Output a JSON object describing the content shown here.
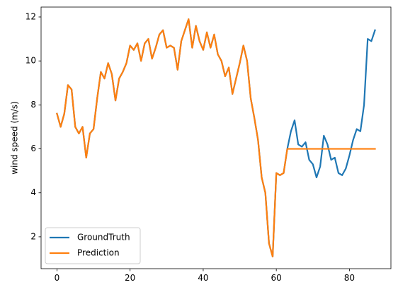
{
  "chart_data": {
    "type": "line",
    "title": "",
    "xlabel": "",
    "ylabel": "wind speed (m/s)",
    "xlim": [
      -4.35,
      91.35
    ],
    "ylim": [
      0.55,
      12.45
    ],
    "xticks": [
      0,
      20,
      40,
      60,
      80
    ],
    "yticks": [
      2,
      4,
      6,
      8,
      10,
      12
    ],
    "grid": false,
    "legend_position": "lower-left",
    "series": [
      {
        "name": "GroundTruth",
        "color": "#1f77b4",
        "x": [
          0,
          1,
          2,
          3,
          4,
          5,
          6,
          7,
          8,
          9,
          10,
          11,
          12,
          13,
          14,
          15,
          16,
          17,
          18,
          19,
          20,
          21,
          22,
          23,
          24,
          25,
          26,
          27,
          28,
          29,
          30,
          31,
          32,
          33,
          34,
          35,
          36,
          37,
          38,
          39,
          40,
          41,
          42,
          43,
          44,
          45,
          46,
          47,
          48,
          49,
          50,
          51,
          52,
          53,
          54,
          55,
          56,
          57,
          58,
          59,
          60,
          61,
          62,
          63,
          64,
          65,
          66,
          67,
          68,
          69,
          70,
          71,
          72,
          73,
          74,
          75,
          76,
          77,
          78,
          79,
          80,
          81,
          82,
          83,
          84,
          85,
          86,
          87
        ],
        "values": [
          7.6,
          7.0,
          7.6,
          8.9,
          8.7,
          7.0,
          6.7,
          7.0,
          5.6,
          6.7,
          6.9,
          8.3,
          9.5,
          9.2,
          9.9,
          9.4,
          8.2,
          9.2,
          9.5,
          9.9,
          10.7,
          10.5,
          10.8,
          10.0,
          10.8,
          11.0,
          10.1,
          10.6,
          11.2,
          11.4,
          10.6,
          10.7,
          10.6,
          9.6,
          10.9,
          11.4,
          11.9,
          10.6,
          11.6,
          10.9,
          10.5,
          11.3,
          10.6,
          11.2,
          10.3,
          10.0,
          9.3,
          9.7,
          8.5,
          9.2,
          9.9,
          10.7,
          10.0,
          8.3,
          7.4,
          6.4,
          4.7,
          4.0,
          1.7,
          1.1,
          4.9,
          4.8,
          4.9,
          6.0,
          6.8,
          7.3,
          6.2,
          6.1,
          6.3,
          5.5,
          5.3,
          4.7,
          5.2,
          6.6,
          6.2,
          5.5,
          5.6,
          4.9,
          4.8,
          5.1,
          5.7,
          6.4,
          6.9,
          6.8,
          8.0,
          11.0,
          10.9,
          11.4
        ]
      },
      {
        "name": "Prediction",
        "color": "#ff7f0e",
        "x": [
          0,
          1,
          2,
          3,
          4,
          5,
          6,
          7,
          8,
          9,
          10,
          11,
          12,
          13,
          14,
          15,
          16,
          17,
          18,
          19,
          20,
          21,
          22,
          23,
          24,
          25,
          26,
          27,
          28,
          29,
          30,
          31,
          32,
          33,
          34,
          35,
          36,
          37,
          38,
          39,
          40,
          41,
          42,
          43,
          44,
          45,
          46,
          47,
          48,
          49,
          50,
          51,
          52,
          53,
          54,
          55,
          56,
          57,
          58,
          59,
          60,
          61,
          62,
          63,
          64,
          65,
          66,
          67,
          68,
          69,
          70,
          71,
          72,
          73,
          74,
          75,
          76,
          77,
          78,
          79,
          80,
          81,
          82,
          83,
          84,
          85,
          86,
          87
        ],
        "values": [
          7.6,
          7.0,
          7.6,
          8.9,
          8.7,
          7.0,
          6.7,
          7.0,
          5.6,
          6.7,
          6.9,
          8.3,
          9.5,
          9.2,
          9.9,
          9.4,
          8.2,
          9.2,
          9.5,
          9.9,
          10.7,
          10.5,
          10.8,
          10.0,
          10.8,
          11.0,
          10.1,
          10.6,
          11.2,
          11.4,
          10.6,
          10.7,
          10.6,
          9.6,
          10.9,
          11.4,
          11.9,
          10.6,
          11.6,
          10.9,
          10.5,
          11.3,
          10.6,
          11.2,
          10.3,
          10.0,
          9.3,
          9.7,
          8.5,
          9.2,
          9.9,
          10.7,
          10.0,
          8.3,
          7.4,
          6.4,
          4.7,
          4.0,
          1.7,
          1.1,
          4.9,
          4.8,
          4.9,
          6.0,
          6.0,
          6.0,
          6.0,
          6.0,
          6.0,
          6.0,
          6.0,
          6.0,
          6.0,
          6.0,
          6.0,
          6.0,
          6.0,
          6.0,
          6.0,
          6.0,
          6.0,
          6.0,
          6.0,
          6.0,
          6.0,
          6.0,
          6.0,
          6.0
        ]
      }
    ]
  }
}
